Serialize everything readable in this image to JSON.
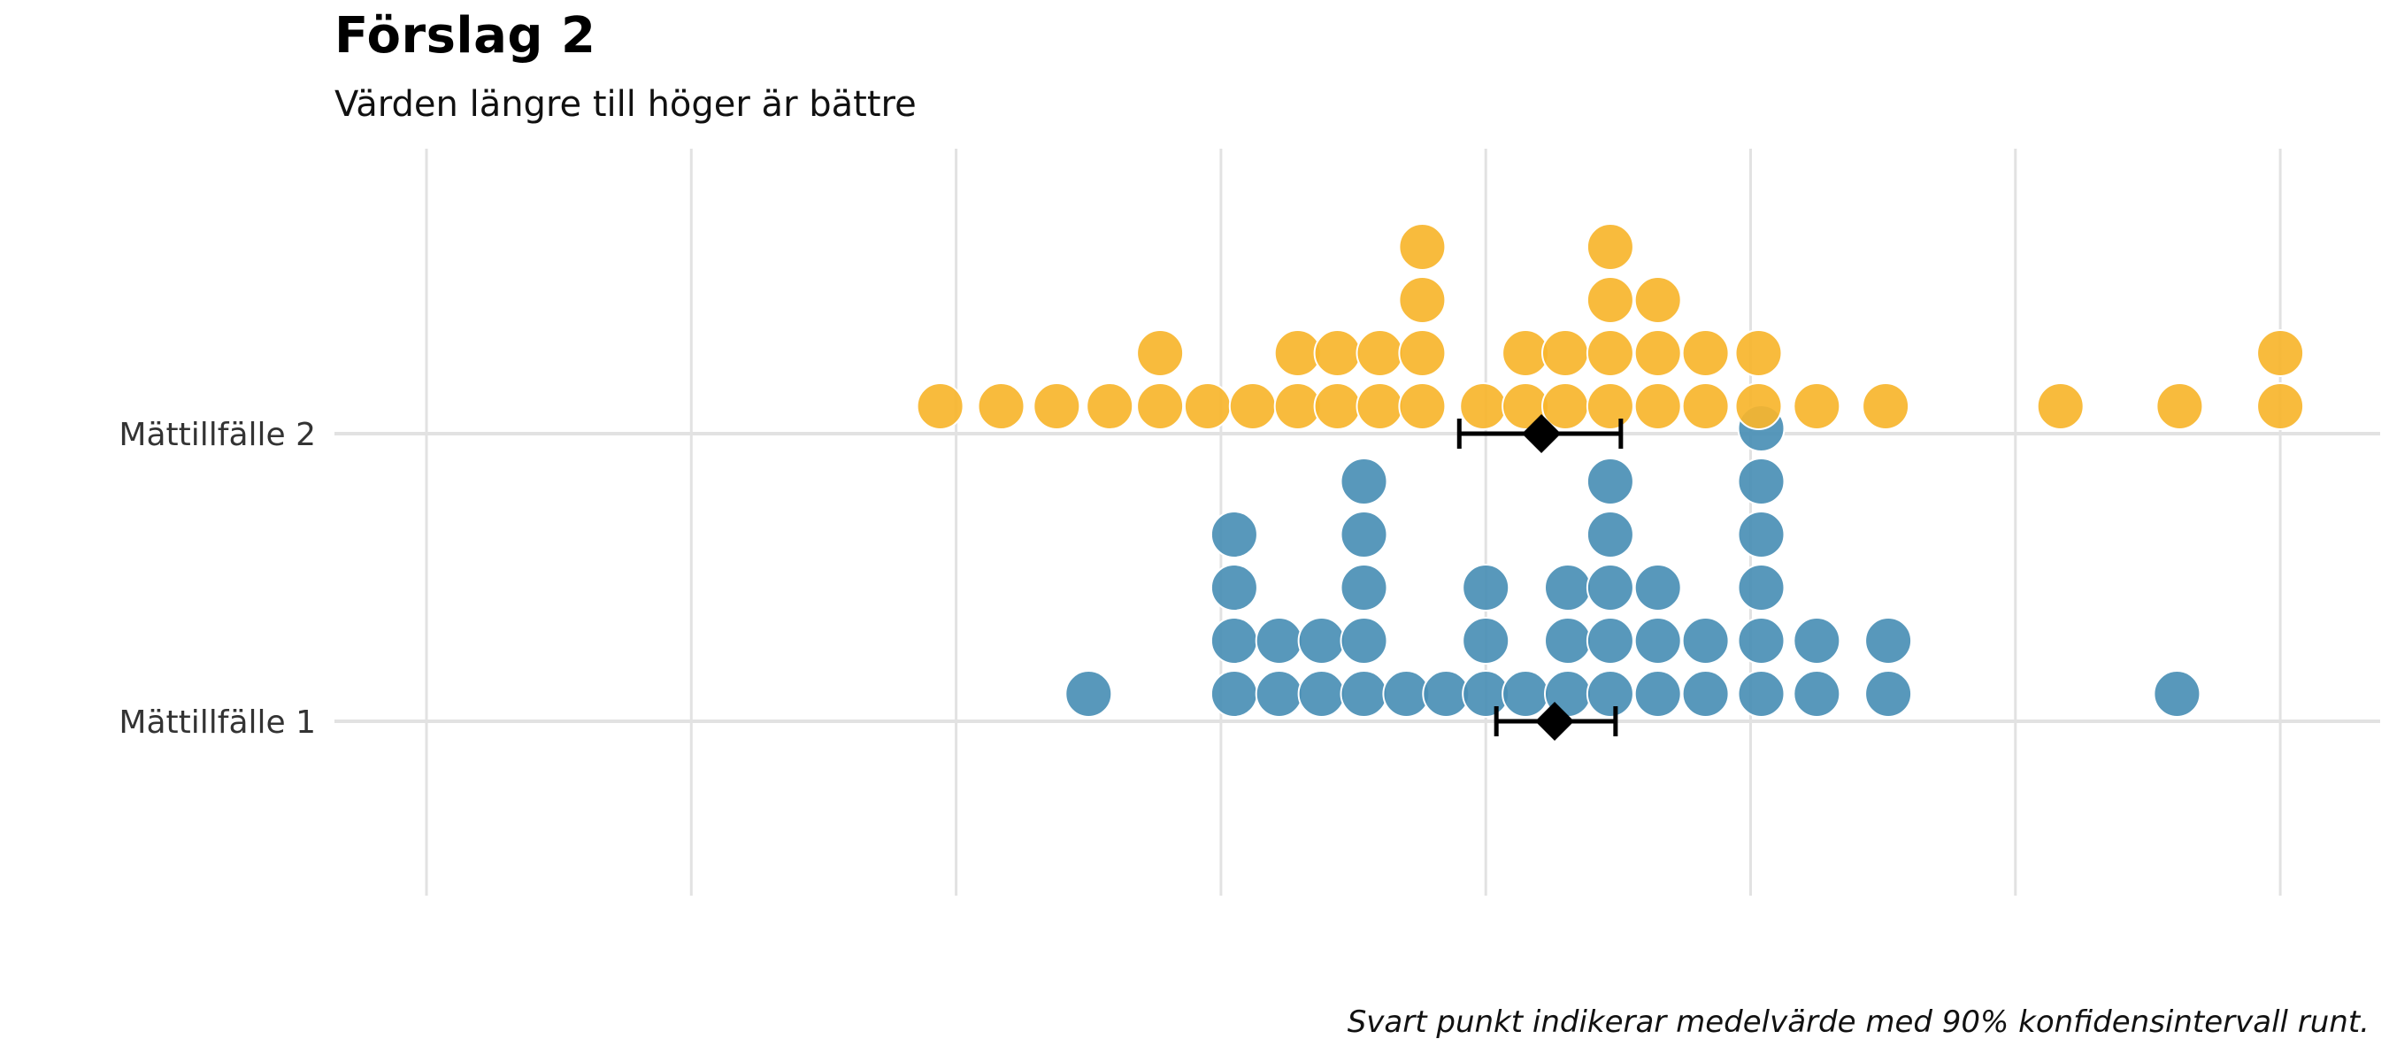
{
  "chart_data": {
    "type": "dot",
    "title": "Förslag 2",
    "subtitle": "Värden längre till höger är bättre",
    "caption": "Svart punkt indikerar medelvärde med 90% konfidensintervall runt.",
    "xlabel": "",
    "ylabel": "",
    "x_tick_labels_visible": false,
    "grid": true,
    "xlim": [
      -0.35,
      7.2
    ],
    "colors": {
      "Mättillfälle 1": "#4a8fb5",
      "Mättillfälle 2": "#f7b52c",
      "mean": "#000000",
      "grid": "#e2e2e2"
    },
    "categories": [
      "Mättillfälle 1",
      "Mättillfälle 2"
    ],
    "series": [
      {
        "name": "Mättillfälle 1",
        "stacks": [
          {
            "x": 2.5,
            "count": 1
          },
          {
            "x": 3.05,
            "count": 4
          },
          {
            "x": 3.22,
            "count": 2
          },
          {
            "x": 3.38,
            "count": 2
          },
          {
            "x": 3.54,
            "count": 5
          },
          {
            "x": 3.7,
            "count": 1
          },
          {
            "x": 3.85,
            "count": 1
          },
          {
            "x": 4.0,
            "count": 3
          },
          {
            "x": 4.15,
            "count": 1
          },
          {
            "x": 4.31,
            "count": 3
          },
          {
            "x": 4.47,
            "count": 5
          },
          {
            "x": 4.65,
            "count": 3
          },
          {
            "x": 4.83,
            "count": 2
          },
          {
            "x": 5.04,
            "count": 6
          },
          {
            "x": 5.25,
            "count": 2
          },
          {
            "x": 5.52,
            "count": 2
          },
          {
            "x": 6.61,
            "count": 1
          }
        ],
        "mean": 4.26,
        "ci": [
          4.04,
          4.49
        ]
      },
      {
        "name": "Mättillfälle 2",
        "stacks": [
          {
            "x": 1.94,
            "count": 1
          },
          {
            "x": 2.17,
            "count": 1
          },
          {
            "x": 2.38,
            "count": 1
          },
          {
            "x": 2.58,
            "count": 1
          },
          {
            "x": 2.77,
            "count": 2
          },
          {
            "x": 2.95,
            "count": 1
          },
          {
            "x": 3.12,
            "count": 1
          },
          {
            "x": 3.29,
            "count": 2
          },
          {
            "x": 3.44,
            "count": 2
          },
          {
            "x": 3.6,
            "count": 2
          },
          {
            "x": 3.76,
            "count": 4
          },
          {
            "x": 3.99,
            "count": 1
          },
          {
            "x": 4.15,
            "count": 2
          },
          {
            "x": 4.3,
            "count": 2
          },
          {
            "x": 4.47,
            "count": 4
          },
          {
            "x": 4.65,
            "count": 3
          },
          {
            "x": 4.83,
            "count": 2
          },
          {
            "x": 5.03,
            "count": 2
          },
          {
            "x": 5.25,
            "count": 1
          },
          {
            "x": 5.51,
            "count": 1
          },
          {
            "x": 6.17,
            "count": 1
          },
          {
            "x": 6.62,
            "count": 1
          },
          {
            "x": 7.0,
            "count": 2
          }
        ],
        "mean": 4.21,
        "ci": [
          3.9,
          4.51
        ]
      }
    ]
  }
}
